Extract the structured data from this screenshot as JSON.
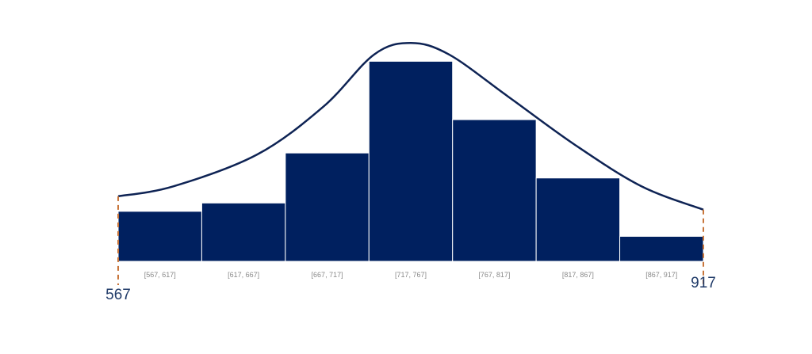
{
  "chart_data": {
    "type": "bar",
    "categories": [
      "[567, 617]",
      "[617, 667]",
      "[667, 717]",
      "[717, 767]",
      "[767, 817]",
      "[817, 867]",
      "[867, 917]"
    ],
    "values": [
      3.0,
      3.5,
      6.5,
      12.0,
      8.5,
      5.0,
      1.5
    ],
    "xlim": [
      567,
      917
    ],
    "ylim": [
      0,
      13.3
    ],
    "range_markers": [
      {
        "label": "567",
        "x": 567
      },
      {
        "label": "917",
        "x": 917
      }
    ],
    "curve": [
      {
        "x": 567,
        "y": 3.9
      },
      {
        "x": 600,
        "y": 4.5
      },
      {
        "x": 650,
        "y": 6.4
      },
      {
        "x": 690,
        "y": 9.3
      },
      {
        "x": 720,
        "y": 12.4
      },
      {
        "x": 742,
        "y": 13.1
      },
      {
        "x": 765,
        "y": 12.4
      },
      {
        "x": 800,
        "y": 9.9
      },
      {
        "x": 840,
        "y": 7.0
      },
      {
        "x": 880,
        "y": 4.5
      },
      {
        "x": 917,
        "y": 3.1
      }
    ],
    "colors": {
      "bar": "#00205F",
      "bar_edge": "#ffffff",
      "curve": "#0e2354",
      "marker": "#c8763c",
      "bin_label": "#8a8a8a",
      "end_label": "#1f3a68"
    },
    "grid": false,
    "legend": "none"
  }
}
